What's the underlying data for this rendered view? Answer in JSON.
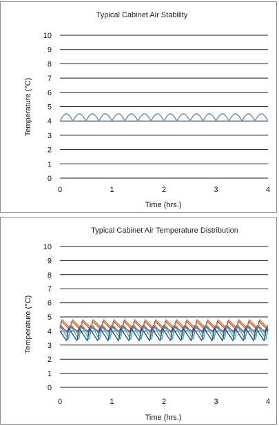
{
  "chart_data": [
    {
      "type": "line",
      "title": "Typical Cabinet Air Stability",
      "xlabel": "Time (hrs.)",
      "ylabel": "Temperature (°C)",
      "xlim": [
        0,
        4
      ],
      "ylim": [
        0,
        10
      ],
      "xticks": [
        "0",
        "1",
        "2",
        "3",
        "4"
      ],
      "yticks": [
        "0",
        "1",
        "2",
        "3",
        "4",
        "5",
        "6",
        "7",
        "8",
        "9",
        "10"
      ],
      "grid": true,
      "legend": "none",
      "cycle_period_hrs": 0.25,
      "series": [
        {
          "color": "#5b8fc7",
          "min": 4.0,
          "max": 4.5,
          "shape": "arch"
        }
      ]
    },
    {
      "type": "line",
      "title": "Typical Cabinet Air Temperature Distribution",
      "xlabel": "Time (hrs.)",
      "ylabel": "Temperature (°C)",
      "xlim": [
        0,
        4
      ],
      "ylim": [
        0,
        10
      ],
      "xticks": [
        "0",
        "1",
        "2",
        "3",
        "4"
      ],
      "yticks": [
        "0",
        "1",
        "2",
        "3",
        "4",
        "5",
        "6",
        "7",
        "8",
        "9",
        "10"
      ],
      "grid": true,
      "legend": "none",
      "cycle_period_hrs": 0.2,
      "series": [
        {
          "color": "#e46c0a",
          "min": 4.2,
          "max": 4.8,
          "shape": "sawtooth"
        },
        {
          "color": "#c0504d",
          "min": 4.1,
          "max": 4.7,
          "shape": "sawtooth"
        },
        {
          "color": "#9bbb59",
          "min": 3.6,
          "max": 4.5,
          "shape": "sawtooth"
        },
        {
          "color": "#4bacc6",
          "min": 3.4,
          "max": 4.4,
          "shape": "sawtooth"
        },
        {
          "color": "#8064a2",
          "min": 3.9,
          "max": 4.4,
          "shape": "sawtooth"
        },
        {
          "color": "#4f81bd",
          "min": 4.0,
          "max": 4.3,
          "shape": "sawtooth"
        },
        {
          "color": "#2c4d75",
          "min": 3.3,
          "max": 4.2,
          "shape": "sawtooth"
        }
      ]
    }
  ]
}
